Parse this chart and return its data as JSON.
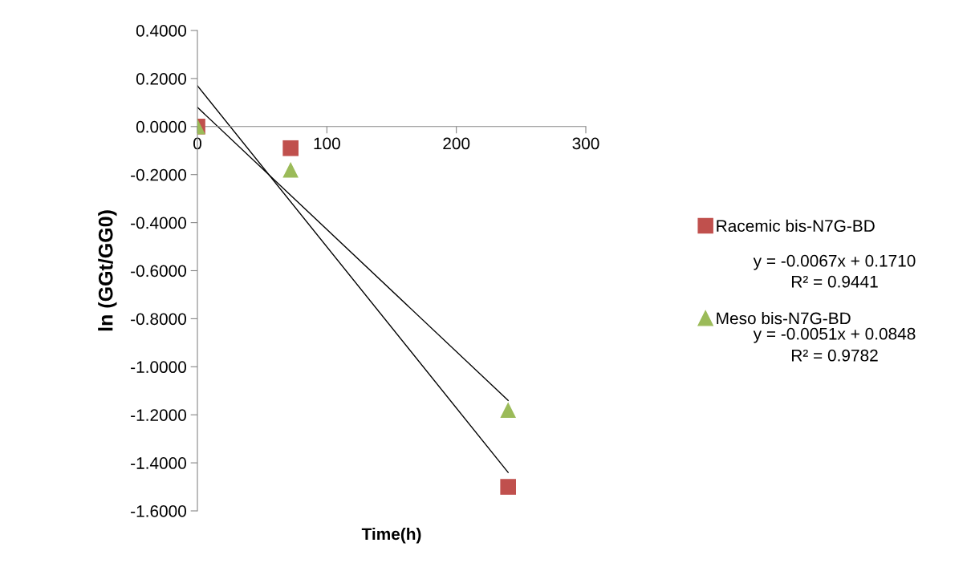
{
  "chart_data": {
    "type": "scatter",
    "xlabel": "Time(h)",
    "ylabel": "ln (GGt/GG0)",
    "xlim": [
      0,
      300
    ],
    "xticks": [
      0,
      100,
      200,
      300
    ],
    "ylim": [
      -1.6,
      0.4
    ],
    "yticks": [
      {
        "value": -1.6,
        "label": "-1.6000"
      },
      {
        "value": -1.4,
        "label": "-1.4000"
      },
      {
        "value": -1.2,
        "label": "-1.2000"
      },
      {
        "value": -1.0,
        "label": "-1.0000"
      },
      {
        "value": -0.8,
        "label": "-0.8000"
      },
      {
        "value": -0.6,
        "label": "-0.6000"
      },
      {
        "value": -0.4,
        "label": "-0.4000"
      },
      {
        "value": -0.2,
        "label": "-0.2000"
      },
      {
        "value": 0,
        "label": "0.0000"
      },
      {
        "value": 0.2,
        "label": "0.2000"
      },
      {
        "value": 0.4,
        "label": "0.4000"
      }
    ],
    "grid": false,
    "legend": "right",
    "series": [
      {
        "name": "Racemic bis-N7G-BD",
        "marker": "square",
        "color": "#c0504d",
        "x": [
          0,
          72,
          240
        ],
        "values": [
          0,
          -0.09,
          -1.5
        ]
      },
      {
        "name": "Meso bis-N7G-BD",
        "marker": "triangle",
        "color": "#9bbb59",
        "x": [
          0,
          72,
          240
        ],
        "values": [
          0,
          -0.18,
          -1.18
        ]
      },
      {
        "type": "line",
        "marker": "none",
        "color": "#000000",
        "x": [
          0,
          240
        ],
        "values": [
          0.17,
          -1.44
        ]
      },
      {
        "type": "line",
        "marker": "none",
        "color": "#000000",
        "x": [
          0,
          240
        ],
        "values": [
          0.08,
          -1.14
        ]
      }
    ],
    "annotations": [
      "y = -0.0067x + 0.1710",
      "R² = 0.9441",
      "y = -0.0051x + 0.0848",
      "R² = 0.9782"
    ]
  }
}
